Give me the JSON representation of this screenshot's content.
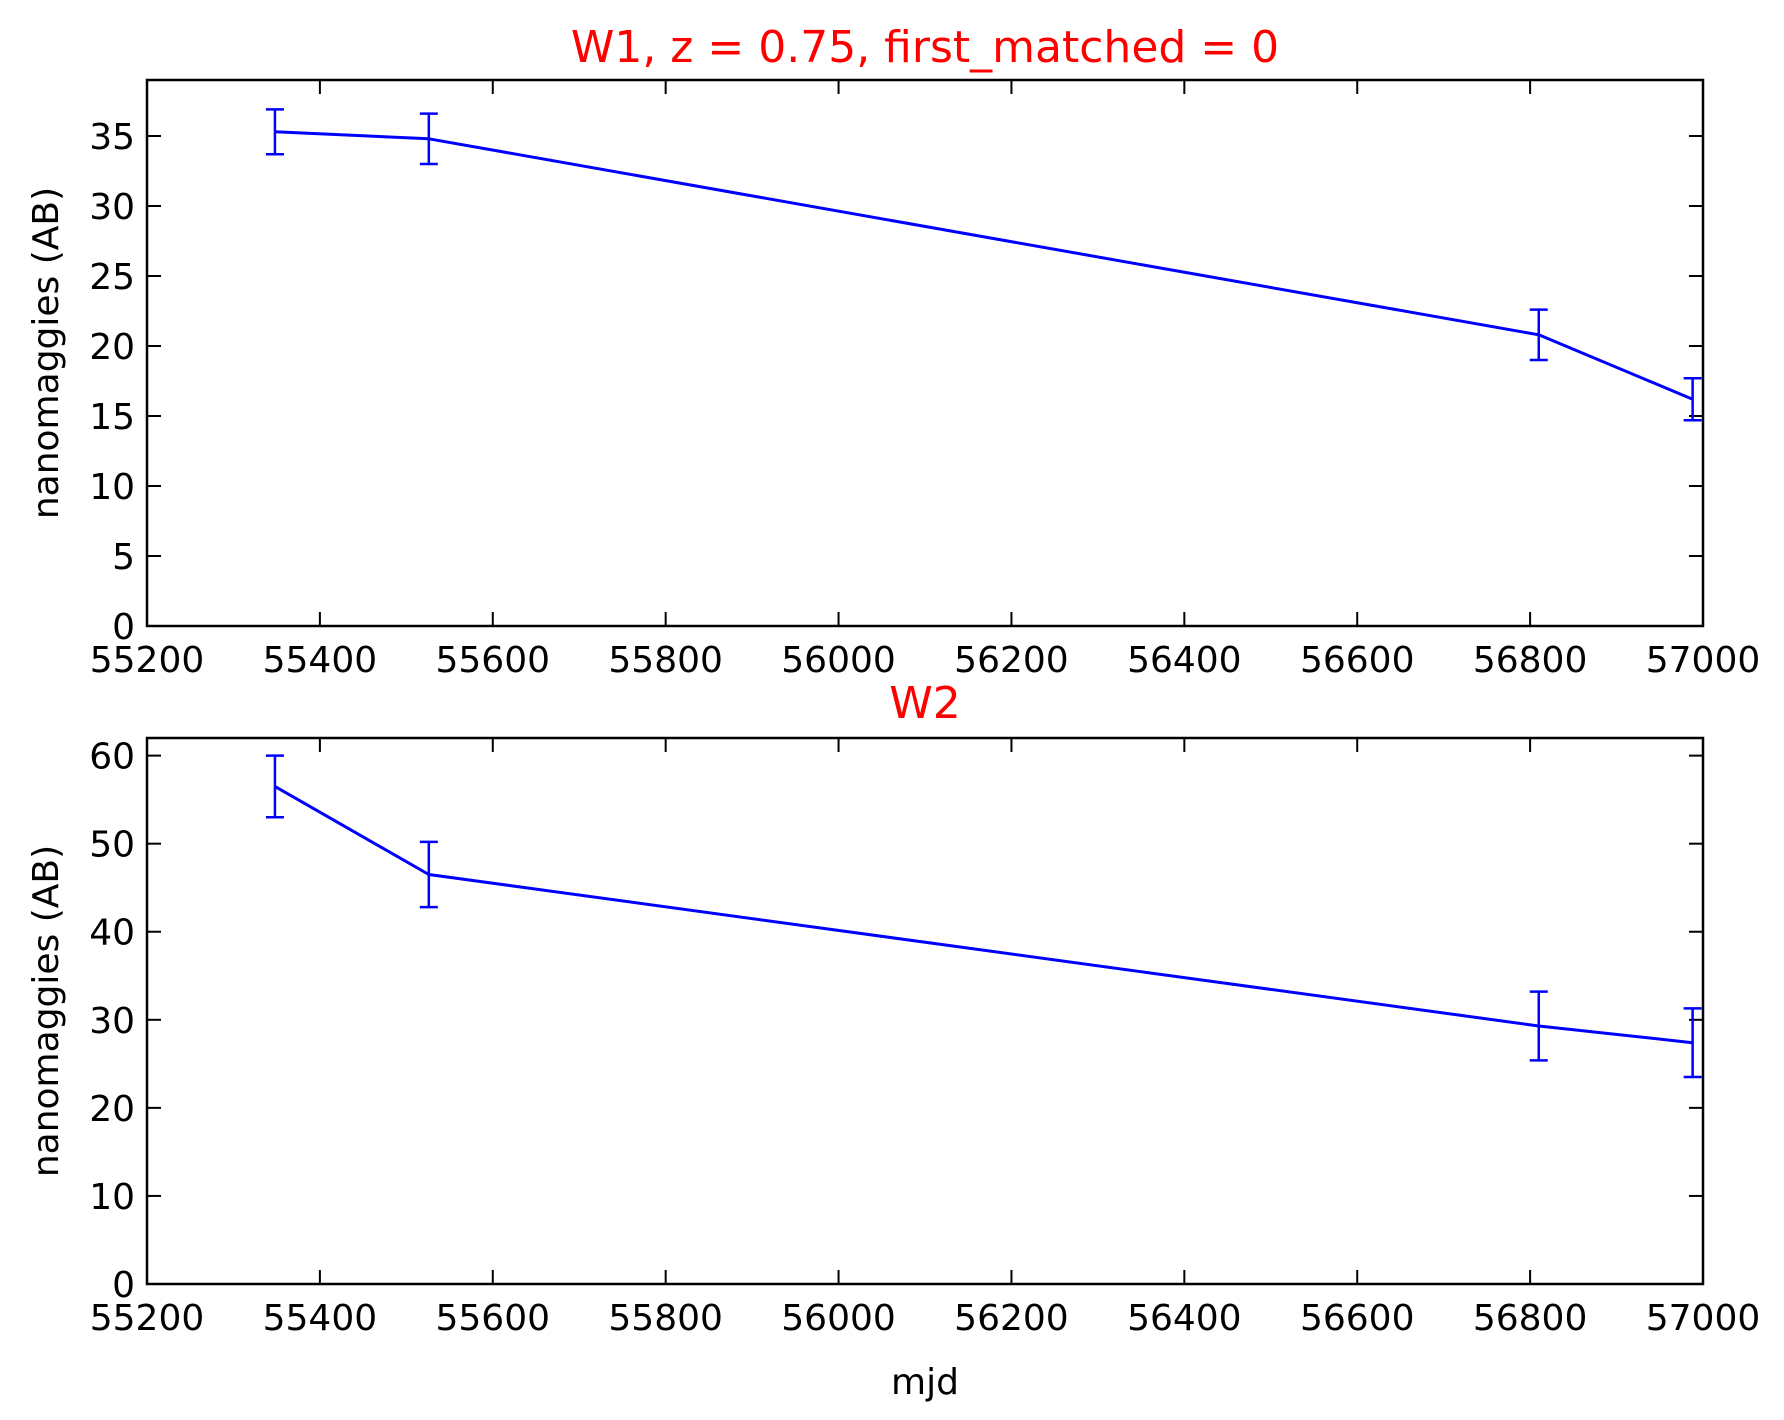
{
  "figure": {
    "colors": {
      "series": "#0000ff",
      "title": "#ff0000",
      "axes": "#000000",
      "background": "#ffffff"
    }
  },
  "chart_data": [
    {
      "type": "line",
      "title": "W1, z = 0.75, first_matched = 0",
      "xlabel": "",
      "ylabel": "nanomaggies (AB)",
      "xlim": [
        55200,
        57000
      ],
      "ylim": [
        0,
        39
      ],
      "xticks": [
        "55200",
        "55400",
        "55600",
        "55800",
        "56000",
        "56200",
        "56400",
        "56600",
        "56800",
        "57000"
      ],
      "yticks": [
        "0",
        "5",
        "10",
        "15",
        "20",
        "25",
        "30",
        "35"
      ],
      "grid": false,
      "series": [
        {
          "error_bars": true,
          "points": [
            {
              "x": 55348,
              "y": 35.3,
              "yerr": 1.6
            },
            {
              "x": 55526,
              "y": 34.8,
              "yerr": 1.8
            },
            {
              "x": 56810,
              "y": 20.8,
              "yerr": 1.8
            },
            {
              "x": 56988,
              "y": 16.2,
              "yerr": 1.5
            }
          ]
        }
      ]
    },
    {
      "type": "line",
      "title": "W2",
      "xlabel": "mjd",
      "ylabel": "nanomaggies (AB)",
      "xlim": [
        55200,
        57000
      ],
      "ylim": [
        0,
        62
      ],
      "xticks": [
        "55200",
        "55400",
        "55600",
        "55800",
        "56000",
        "56200",
        "56400",
        "56600",
        "56800",
        "57000"
      ],
      "yticks": [
        "0",
        "10",
        "20",
        "30",
        "40",
        "50",
        "60"
      ],
      "grid": false,
      "series": [
        {
          "error_bars": true,
          "points": [
            {
              "x": 55348,
              "y": 56.5,
              "yerr": 3.5
            },
            {
              "x": 55526,
              "y": 46.5,
              "yerr": 3.7
            },
            {
              "x": 56810,
              "y": 29.3,
              "yerr": 3.9
            },
            {
              "x": 56988,
              "y": 27.4,
              "yerr": 3.9
            }
          ]
        }
      ]
    }
  ]
}
